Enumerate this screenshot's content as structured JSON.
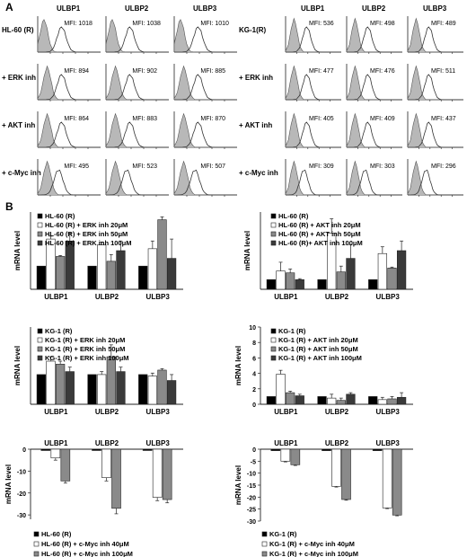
{
  "figure": {
    "panel_a_label": "A",
    "panel_b_label": "B"
  },
  "panel_a": {
    "left": {
      "columns": [
        "ULBP1",
        "ULBP2",
        "ULBP3"
      ],
      "rows": [
        {
          "label": "HL-60 (R)",
          "mfi": [
            "MFI: 1018",
            "MFI: 1038",
            "MFI: 1010"
          ]
        },
        {
          "label": "+ ERK inh",
          "mfi": [
            "MFI: 894",
            "MFI: 902",
            "MFI: 885"
          ]
        },
        {
          "label": "+ AKT inh",
          "mfi": [
            "MFI: 864",
            "MFI: 883",
            "MFI: 870"
          ]
        },
        {
          "label": "+ c-Myc inh",
          "mfi": [
            "MFI: 495",
            "MFI: 523",
            "MFI: 507"
          ]
        }
      ]
    },
    "right": {
      "columns": [
        "ULBP1",
        "ULBP2",
        "ULBP3"
      ],
      "rows": [
        {
          "label": "KG-1(R)",
          "mfi": [
            "MFI: 536",
            "MFI: 498",
            "MFI: 489"
          ]
        },
        {
          "label": "+ ERK inh",
          "mfi": [
            "MFI: 477",
            "MFI: 476",
            "MFI: 511"
          ]
        },
        {
          "label": "+ AKT inh",
          "mfi": [
            "MFI: 405",
            "MFI: 409",
            "MFI: 437"
          ]
        },
        {
          "label": "+ c-Myc inh",
          "mfi": [
            "MFI: 309",
            "MFI: 303",
            "MFI: 296"
          ]
        }
      ]
    }
  },
  "chart_data": [
    {
      "type": "bar",
      "ylabel": "mRNA level",
      "categories": [
        "ULBP1",
        "ULBP2",
        "ULBP3"
      ],
      "ylim": [
        0,
        4
      ],
      "yticks": [],
      "series": [
        {
          "name": "HL-60 (R)",
          "color": "#000000",
          "values": [
            1.2,
            1.2,
            1.2
          ],
          "errors": [
            0,
            0,
            0
          ]
        },
        {
          "name": "HL-60 (R) + ERK inh 20μM",
          "color": "#ffffff",
          "values": [
            2.6,
            2.3,
            2.1
          ],
          "errors": [
            0.15,
            0.15,
            0.4
          ]
        },
        {
          "name": "HL-60 (R) + ERK inh 50μM",
          "color": "#8a8a8a",
          "values": [
            1.7,
            1.45,
            3.6
          ],
          "errors": [
            0.05,
            0.35,
            0.15
          ]
        },
        {
          "name": "HL-60 (R) + ERK inh 100μM",
          "color": "#3a3a3a",
          "values": [
            2.5,
            2.0,
            1.6
          ],
          "errors": [
            0.4,
            0.5,
            1.0
          ]
        }
      ]
    },
    {
      "type": "bar",
      "ylabel": "mRNA level",
      "categories": [
        "ULBP1",
        "ULBP2",
        "ULBP3"
      ],
      "ylim": [
        0,
        8
      ],
      "yticks": [],
      "series": [
        {
          "name": "HL-60 (R)",
          "color": "#000000",
          "values": [
            1.0,
            1.0,
            1.0
          ],
          "errors": [
            0,
            0,
            0
          ]
        },
        {
          "name": "HL-60 (R) + AKT inh 20μM",
          "color": "#ffffff",
          "values": [
            1.9,
            5.8,
            3.7
          ],
          "errors": [
            0.9,
            1.5,
            0.7
          ]
        },
        {
          "name": "HL-60 (R) + AKT inh 50μM",
          "color": "#8a8a8a",
          "values": [
            1.7,
            1.8,
            2.2
          ],
          "errors": [
            0.4,
            0.6,
            0.1
          ]
        },
        {
          "name": "HL-60 (R)+ AKT inh 100μM",
          "color": "#3a3a3a",
          "values": [
            1.0,
            3.2,
            4.0
          ],
          "errors": [
            0.1,
            1.4,
            1.0
          ]
        }
      ]
    },
    {
      "type": "bar",
      "ylabel": "mRNA level",
      "categories": [
        "ULBP1",
        "ULBP2",
        "ULBP3"
      ],
      "ylim": [
        0,
        2.6
      ],
      "yticks": [],
      "series": [
        {
          "name": "KG-1 (R)",
          "color": "#000000",
          "values": [
            1.0,
            1.0,
            1.0
          ],
          "errors": [
            0,
            0,
            0
          ]
        },
        {
          "name": "KG-1 (R) + ERK inh 20μM",
          "color": "#ffffff",
          "values": [
            1.45,
            1.0,
            0.95
          ],
          "errors": [
            0.15,
            0.1,
            0.1
          ]
        },
        {
          "name": "KG-1 (R) + ERK inh 50μM",
          "color": "#8a8a8a",
          "values": [
            1.35,
            1.6,
            1.15
          ],
          "errors": [
            0.1,
            0.4,
            0.05
          ]
        },
        {
          "name": "KG-1 (R) + ERK inh 100μM",
          "color": "#3a3a3a",
          "values": [
            1.1,
            1.1,
            0.8
          ],
          "errors": [
            0.15,
            0.15,
            0.2
          ]
        }
      ]
    },
    {
      "type": "bar",
      "ylabel": "mRNA level",
      "categories": [
        "ULBP1",
        "ULBP2",
        "ULBP3"
      ],
      "ylim": [
        0,
        10
      ],
      "yticks": [
        0,
        2,
        4,
        6,
        8,
        10
      ],
      "series": [
        {
          "name": "KG-1 (R)",
          "color": "#000000",
          "values": [
            1.0,
            1.0,
            1.0
          ],
          "errors": [
            0,
            0,
            0
          ]
        },
        {
          "name": "KG-1 (R) + AKT inh 20μM",
          "color": "#ffffff",
          "values": [
            3.9,
            0.8,
            0.6
          ],
          "errors": [
            0.5,
            0.5,
            0.3
          ]
        },
        {
          "name": "KG-1 (R) + AKT inh 50μM",
          "color": "#8a8a8a",
          "values": [
            1.5,
            0.5,
            0.7
          ],
          "errors": [
            0.2,
            0.3,
            0.3
          ]
        },
        {
          "name": "KG-1 (R) + AKT inh 100μM",
          "color": "#3a3a3a",
          "values": [
            1.1,
            1.3,
            0.9
          ],
          "errors": [
            0.2,
            0.2,
            0.6
          ]
        }
      ]
    },
    {
      "type": "bar",
      "ylabel": "mRNA level",
      "categories": [
        "ULBP1",
        "ULBP2",
        "ULBP3"
      ],
      "ylim": [
        -32,
        0
      ],
      "yticks": [
        0,
        -10,
        -20,
        -30
      ],
      "series": [
        {
          "name": "HL-60 (R)",
          "color": "#000000",
          "values": [
            -0.6,
            -0.6,
            -0.6
          ],
          "errors": [
            0,
            0,
            0
          ]
        },
        {
          "name": "HL-60 (R) + c-Myc inh 40μM",
          "color": "#ffffff",
          "values": [
            -4,
            -13,
            -22
          ],
          "errors": [
            1.0,
            1.5,
            1.5
          ]
        },
        {
          "name": "HL-60 (R) + c-Myc inh 100μM",
          "color": "#8a8a8a",
          "values": [
            -14.5,
            -27,
            -23
          ],
          "errors": [
            1.0,
            2.5,
            1.5
          ]
        }
      ]
    },
    {
      "type": "bar",
      "ylabel": "mRNA level",
      "categories": [
        "ULBP1",
        "ULBP2",
        "ULBP3"
      ],
      "ylim": [
        -30,
        0
      ],
      "yticks": [
        0,
        -5,
        -10,
        -15,
        -20,
        -25,
        -30
      ],
      "series": [
        {
          "name": "KG-1 (R)",
          "color": "#000000",
          "values": [
            -0.6,
            -0.6,
            -0.6
          ],
          "errors": [
            0,
            0,
            0
          ]
        },
        {
          "name": "KG-1 (R) + c-Myc inh 40μM",
          "color": "#ffffff",
          "values": [
            -5,
            -15.5,
            -24.5
          ],
          "errors": [
            0.3,
            0.3,
            0.3
          ]
        },
        {
          "name": "KG-1 (R) + c-Myc inh 100μM",
          "color": "#8a8a8a",
          "values": [
            -6.5,
            -21,
            -27.5
          ],
          "errors": [
            0.3,
            0.3,
            0.3
          ]
        }
      ]
    }
  ]
}
